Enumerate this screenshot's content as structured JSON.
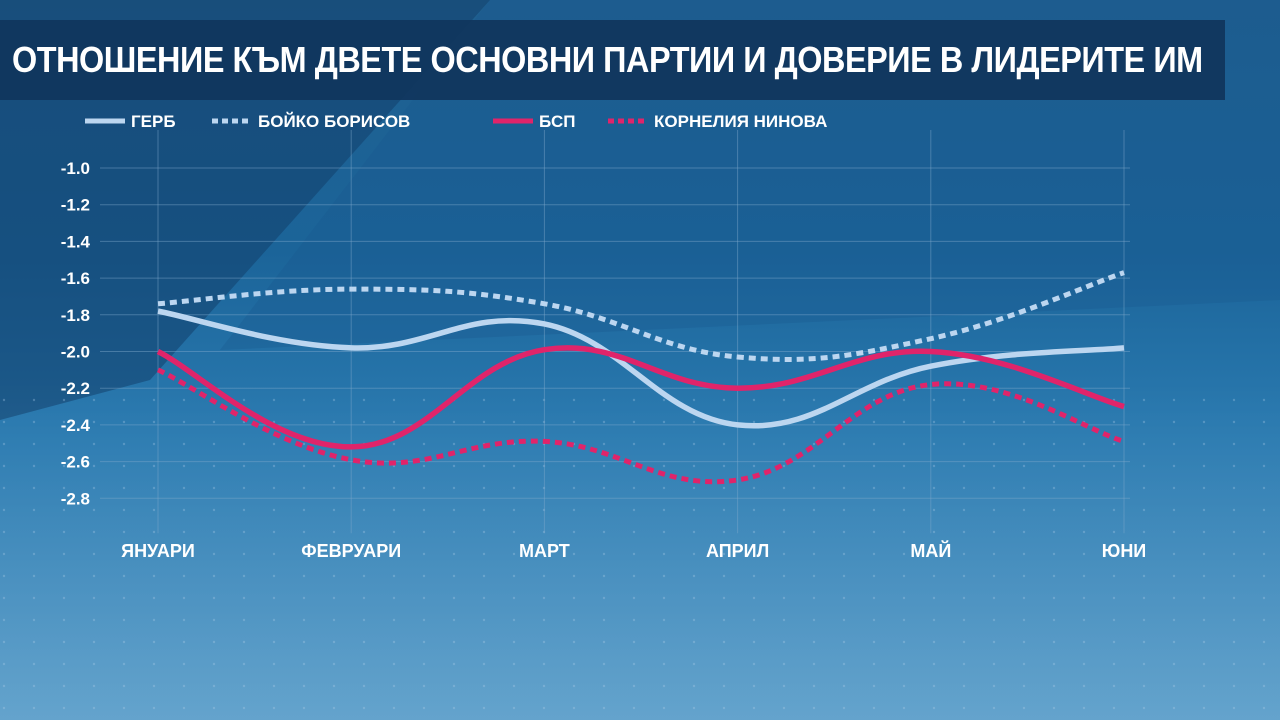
{
  "title": "ОТНОШЕНИЕ КЪМ ДВЕТЕ ОСНОВНИ ПАРТИИ И ДОВЕРИЕ В ЛИДЕРИТЕ ИМ",
  "colors": {
    "gerb": "#bcd6f0",
    "bsp": "#e0246a",
    "grid": "#7fa9cc",
    "text": "#ffffff",
    "title_bg": "#10355c"
  },
  "chart_data": {
    "type": "line",
    "smooth": true,
    "categories": [
      "ЯНУАРИ",
      "ФЕВРУАРИ",
      "МАРТ",
      "АПРИЛ",
      "МАЙ",
      "ЮНИ"
    ],
    "ylim": [
      -2.8,
      -1.0
    ],
    "yticks": [
      -1.0,
      -1.2,
      -1.4,
      -1.6,
      -1.8,
      -2.0,
      -2.2,
      -2.4,
      -2.6,
      -2.8
    ],
    "grid": true,
    "legend_position": "top",
    "series": [
      {
        "name": "ГЕРБ",
        "style": "solid",
        "color_key": "gerb",
        "values": [
          -1.78,
          -1.98,
          -1.85,
          -2.4,
          -2.08,
          -1.98
        ]
      },
      {
        "name": "БОЙКО БОРИСОВ",
        "style": "dotted",
        "color_key": "gerb",
        "values": [
          -1.74,
          -1.66,
          -1.74,
          -2.03,
          -1.93,
          -1.57
        ]
      },
      {
        "name": "БСП",
        "style": "solid",
        "color_key": "bsp",
        "values": [
          -2.0,
          -2.52,
          -1.99,
          -2.2,
          -2.0,
          -2.3
        ]
      },
      {
        "name": "КОРНЕЛИЯ НИНОВА",
        "style": "dotted",
        "color_key": "bsp",
        "values": [
          -2.1,
          -2.59,
          -2.49,
          -2.7,
          -2.18,
          -2.49
        ]
      }
    ]
  }
}
